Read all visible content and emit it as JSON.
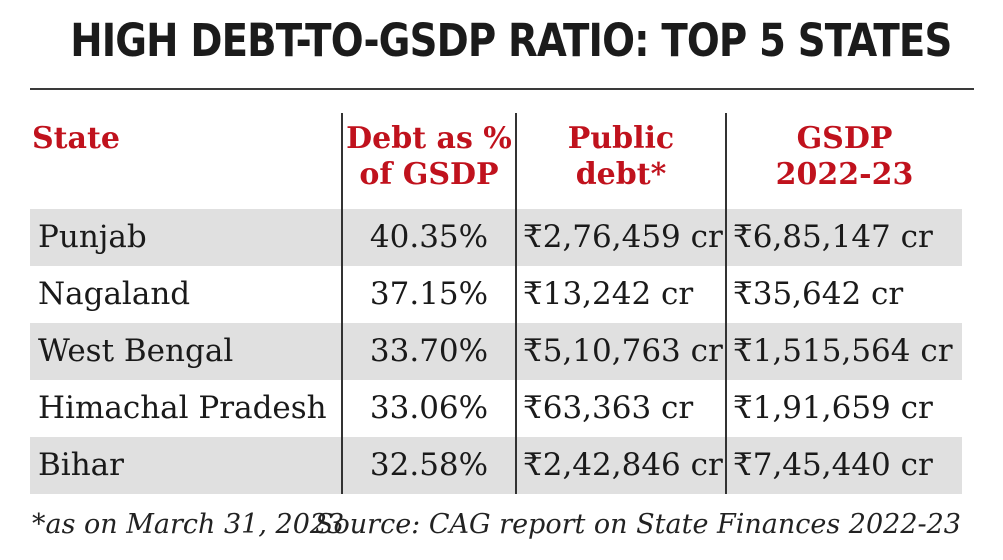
{
  "chart_data": {
    "type": "table",
    "title": "HIGH DEBT-TO-GSDP RATIO: TOP 5 STATES",
    "columns": [
      {
        "line1": "State",
        "line2": ""
      },
      {
        "line1": "Debt as %",
        "line2": "of GSDP"
      },
      {
        "line1": "Public",
        "line2": "debt*"
      },
      {
        "line1": "GSDP",
        "line2": "2022-23"
      }
    ],
    "rows": [
      {
        "state": "Punjab",
        "debt_pct": "40.35%",
        "public_debt": "₹2,76,459 cr",
        "gsdp": "₹6,85,147 cr"
      },
      {
        "state": "Nagaland",
        "debt_pct": "37.15%",
        "public_debt": "₹13,242 cr",
        "gsdp": "₹35,642 cr"
      },
      {
        "state": "West Bengal",
        "debt_pct": "33.70%",
        "public_debt": "₹5,10,763 cr",
        "gsdp": "₹1,515,564 cr"
      },
      {
        "state": "Himachal Pradesh",
        "debt_pct": "33.06%",
        "public_debt": "₹63,363 cr",
        "gsdp": "₹1,91,659 cr"
      },
      {
        "state": "Bihar",
        "debt_pct": "32.58%",
        "public_debt": "₹2,42,846 cr",
        "gsdp": "₹7,45,440 cr"
      }
    ],
    "footnote": "*as on March 31, 2023",
    "source": "Source: CAG report on State Finances 2022-23"
  },
  "colors": {
    "header_text": "#c0121d",
    "row_shade": "#e0e0e0",
    "rule": "#3a3a3a"
  }
}
